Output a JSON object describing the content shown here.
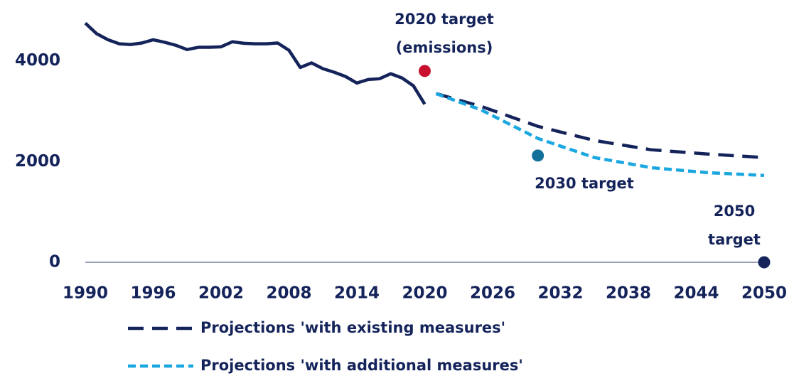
{
  "chart_data": {
    "type": "line",
    "xlim": [
      1990,
      2050
    ],
    "xticks": [
      1990,
      1996,
      2002,
      2008,
      2014,
      2020,
      2026,
      2032,
      2038,
      2044,
      2050
    ],
    "ylim": [
      0,
      4800
    ],
    "yticks": [
      0,
      2000,
      4000
    ],
    "grid": false,
    "series": [
      {
        "color": "#14235a",
        "dash": "solid",
        "x": [
          1990,
          1991,
          1992,
          1993,
          1994,
          1995,
          1996,
          1997,
          1998,
          1999,
          2000,
          2001,
          2002,
          2003,
          2004,
          2005,
          2006,
          2007,
          2008,
          2009,
          2010,
          2011,
          2012,
          2013,
          2014,
          2015,
          2016,
          2017,
          2018,
          2019,
          2020
        ],
        "values": [
          4750,
          4540,
          4420,
          4340,
          4325,
          4355,
          4420,
          4370,
          4310,
          4225,
          4270,
          4270,
          4280,
          4380,
          4350,
          4340,
          4340,
          4355,
          4210,
          3870,
          3960,
          3845,
          3775,
          3690,
          3560,
          3630,
          3645,
          3745,
          3660,
          3505,
          3140
        ]
      },
      {
        "name": "Projections 'with existing measures'",
        "color": "#14235a",
        "dash": "long",
        "x": [
          2021,
          2025,
          2030,
          2035,
          2040,
          2045,
          2050
        ],
        "values": [
          3350,
          3095,
          2700,
          2420,
          2235,
          2150,
          2080
        ]
      },
      {
        "name": "Projections 'with additional measures'",
        "color": "#1aa7e0",
        "dash": "short",
        "x": [
          2021,
          2025,
          2030,
          2035,
          2040,
          2045,
          2050
        ],
        "values": [
          3350,
          3025,
          2460,
          2080,
          1880,
          1780,
          1725
        ]
      }
    ],
    "points": [
      {
        "x": 2020,
        "value": 3800,
        "color": "#c8102e",
        "label": [
          "2020 target",
          "(emissions)"
        ]
      },
      {
        "x": 2030,
        "value": 2120,
        "color": "#12709b",
        "label": [
          "2030 target"
        ]
      },
      {
        "x": 2050,
        "value": 0,
        "color": "#14235a",
        "label": [
          "2050",
          "target"
        ]
      }
    ]
  }
}
